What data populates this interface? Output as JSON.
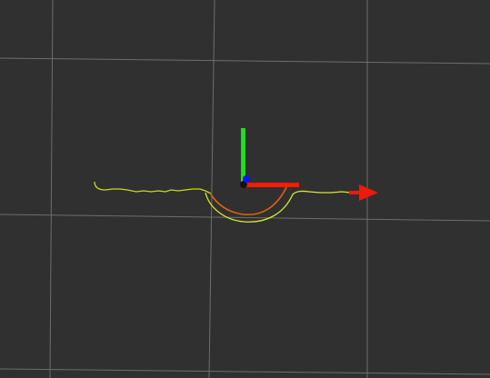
{
  "viewport": {
    "background": "#303030",
    "grid_color": "#a0a0a0"
  },
  "frame_axes": {
    "x_axis_color": "#ff1a00",
    "y_axis_color": "#1ee01e",
    "z_axis_color": "#1010ff",
    "origin_color": "#111111"
  },
  "paths": [
    {
      "name": "planned-path",
      "color": "#e06010"
    },
    {
      "name": "odometry-path-upper",
      "color": "#c8d820"
    },
    {
      "name": "odometry-path-lower",
      "color": "#d8e830"
    }
  ],
  "goal_marker": {
    "color": "#ee1a0a",
    "icon": "goal-arrow-icon"
  }
}
